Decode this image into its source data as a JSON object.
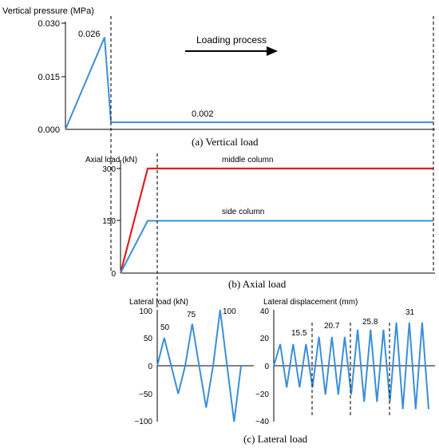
{
  "chart_data": [
    {
      "type": "line",
      "title": "(a) Vertical load",
      "ylabel": "Vertical pressure (MPa)",
      "yticks": [
        "0.000",
        "0.015",
        "0.030"
      ],
      "ylim": [
        0,
        0.03
      ],
      "x": [
        0,
        1,
        1.2,
        10
      ],
      "y": [
        0,
        0.026,
        0.002,
        0.002
      ],
      "annotations": [
        "0.026",
        "0.002"
      ],
      "arrow_label": "Loading process",
      "colors": {
        "line": "#3a8fd9"
      }
    },
    {
      "type": "line",
      "title": "(b) Axial load",
      "ylabel": "Axial load (kN)",
      "yticks": [
        "0",
        "150",
        "300"
      ],
      "ylim": [
        0,
        300
      ],
      "series": [
        {
          "name": "middle column",
          "x": [
            0,
            1,
            10
          ],
          "y": [
            0,
            300,
            300
          ],
          "color": "#e02020"
        },
        {
          "name": "side column",
          "x": [
            0,
            1,
            10
          ],
          "y": [
            0,
            150,
            150
          ],
          "color": "#3a8fd9"
        }
      ]
    },
    {
      "type": "line",
      "title": "(c) Lateral load",
      "panels": [
        {
          "ylabel": "Lateral  load (kN)",
          "yticks": [
            "100",
            "50",
            "0",
            "−50",
            "−100"
          ],
          "ylim": [
            -100,
            100
          ],
          "y": [
            0,
            50,
            0,
            -50,
            0,
            75,
            0,
            -75,
            0,
            100,
            0,
            -100,
            0
          ],
          "annotations": [
            "50",
            "75",
            "100"
          ],
          "colors": {
            "line": "#3a8fd9"
          }
        },
        {
          "ylabel": "Lateral  displacement (mm)",
          "yticks": [
            "40",
            "20",
            "0",
            "−20",
            "−40"
          ],
          "ylim": [
            -40,
            40
          ],
          "y": [
            0,
            15.5,
            -15.5,
            15.5,
            -15.5,
            15.5,
            -15.5,
            20.7,
            -20.7,
            20.7,
            -20.7,
            20.7,
            -20.7,
            25.8,
            -25.8,
            25.8,
            -25.8,
            25.8,
            -25.8,
            31,
            -31,
            31,
            -31,
            31,
            -31
          ],
          "annotations": [
            "15.5",
            "20.7",
            "25.8",
            "31"
          ],
          "colors": {
            "line": "#3a8fd9"
          }
        }
      ]
    }
  ]
}
